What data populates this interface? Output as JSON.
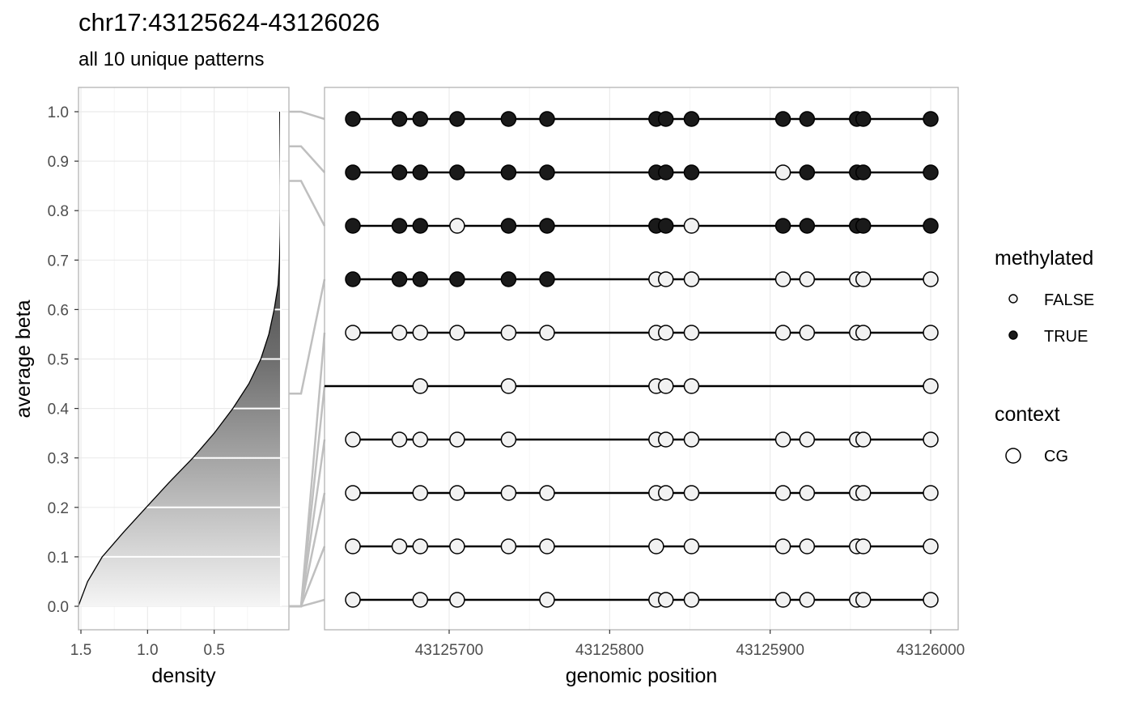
{
  "title": "chr17:43125624-43126026",
  "subtitle": "all 10 unique patterns",
  "chart_data": [
    {
      "type": "area",
      "name": "density-panel",
      "xlabel": "density",
      "ylabel": "average beta",
      "x_ticks": [
        "1.5",
        "1.0",
        "0.5"
      ],
      "x_tick_values": [
        1.5,
        1.0,
        0.5
      ],
      "x_reversed": true,
      "xlim": [
        1.55,
        0.0
      ],
      "y_ticks": [
        "0.0",
        "0.1",
        "0.2",
        "0.3",
        "0.4",
        "0.5",
        "0.6",
        "0.7",
        "0.8",
        "0.9",
        "1.0"
      ],
      "ylim": [
        0,
        1
      ],
      "density_curve": {
        "y": [
          0.0,
          0.05,
          0.1,
          0.15,
          0.2,
          0.25,
          0.3,
          0.35,
          0.4,
          0.45,
          0.5,
          0.55,
          0.6,
          0.65,
          0.7,
          0.75,
          0.8,
          0.85,
          0.9,
          0.95,
          1.0
        ],
        "density": [
          1.52,
          1.45,
          1.34,
          1.18,
          1.01,
          0.84,
          0.66,
          0.5,
          0.36,
          0.24,
          0.15,
          0.09,
          0.05,
          0.02,
          0.01,
          0.005,
          0.003,
          0.003,
          0.004,
          0.006,
          0.008
        ]
      },
      "fill": "gradient grey (light at 0, dark at 1)"
    },
    {
      "type": "scatter",
      "name": "methylation-patterns",
      "xlabel": "genomic position",
      "x_ticks": [
        "43125700",
        "43125800",
        "43125900",
        "43126000"
      ],
      "x_tick_values": [
        43125700,
        43125800,
        43125900,
        43126000
      ],
      "xlim": [
        43125624,
        43126026
      ],
      "positions": [
        43125640,
        43125669,
        43125682,
        43125705,
        43125737,
        43125761,
        43125829,
        43125835,
        43125851,
        43125908,
        43125923,
        43125954,
        43125958,
        43126000
      ],
      "patterns": [
        {
          "avg_beta": 1.0,
          "methylated": [
            true,
            true,
            true,
            true,
            true,
            true,
            true,
            true,
            true,
            true,
            true,
            true,
            true,
            true
          ]
        },
        {
          "avg_beta": 0.93,
          "methylated": [
            true,
            true,
            true,
            true,
            true,
            true,
            true,
            true,
            true,
            false,
            true,
            true,
            true,
            true
          ]
        },
        {
          "avg_beta": 0.86,
          "methylated": [
            true,
            true,
            true,
            false,
            true,
            true,
            true,
            true,
            false,
            true,
            true,
            true,
            true,
            true
          ]
        },
        {
          "avg_beta": 0.43,
          "methylated": [
            true,
            true,
            true,
            true,
            true,
            true,
            false,
            false,
            false,
            false,
            false,
            false,
            false,
            false
          ]
        },
        {
          "avg_beta": 0.0,
          "methylated": [
            false,
            false,
            false,
            false,
            false,
            false,
            false,
            false,
            false,
            false,
            false,
            false,
            false,
            false
          ]
        },
        {
          "avg_beta": 0.0,
          "methylated": [
            null,
            null,
            false,
            null,
            false,
            null,
            false,
            false,
            false,
            null,
            null,
            null,
            null,
            false
          ]
        },
        {
          "avg_beta": 0.0,
          "methylated": [
            false,
            false,
            false,
            false,
            false,
            null,
            false,
            false,
            false,
            false,
            false,
            false,
            false,
            false
          ]
        },
        {
          "avg_beta": 0.0,
          "methylated": [
            false,
            null,
            false,
            false,
            false,
            false,
            false,
            false,
            false,
            false,
            false,
            false,
            false,
            false
          ]
        },
        {
          "avg_beta": 0.0,
          "methylated": [
            false,
            false,
            false,
            false,
            false,
            false,
            false,
            null,
            false,
            false,
            false,
            false,
            false,
            false
          ]
        },
        {
          "avg_beta": 0.0,
          "methylated": [
            false,
            null,
            false,
            false,
            null,
            false,
            false,
            false,
            false,
            false,
            false,
            false,
            false,
            false
          ]
        }
      ],
      "legend": {
        "methylated": {
          "title": "methylated",
          "entries": [
            "FALSE",
            "TRUE"
          ]
        },
        "context": {
          "title": "context",
          "entries": [
            "CG"
          ]
        }
      }
    }
  ],
  "colors": {
    "methylated_true": "#1a1a1a",
    "methylated_false": "#f2f2f2",
    "grid": "#ebebeb",
    "panel_border": "#b3b3b3",
    "connector": "#bfbfbf"
  }
}
